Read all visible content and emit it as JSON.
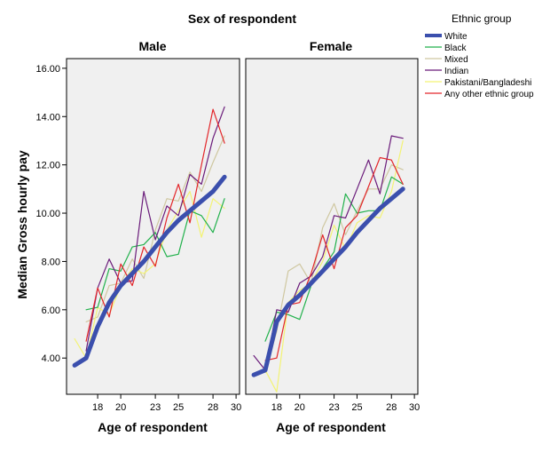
{
  "chart_data": {
    "type": "line",
    "title": "Sex of respondent",
    "xlabel": "Age of respondent",
    "ylabel": "Median Gross hourly pay",
    "x_ticks": [
      18,
      20,
      23,
      25,
      28,
      30
    ],
    "y_ticks": [
      "4.00",
      "6.00",
      "8.00",
      "10.00",
      "12.00",
      "14.00",
      "16.00"
    ],
    "xlim": [
      15.3,
      30.3
    ],
    "ylim": [
      2.5,
      16.4
    ],
    "grid": false,
    "legend_title": "Ethnic group",
    "legend_position": "top-right",
    "series_styles": [
      {
        "name": "White",
        "color": "#3b4fad",
        "width": 5
      },
      {
        "name": "Black",
        "color": "#22b14c",
        "width": 1.2
      },
      {
        "name": "Mixed",
        "color": "#cfc7a0",
        "width": 1.2
      },
      {
        "name": "Indian",
        "color": "#6a1b7a",
        "width": 1.2
      },
      {
        "name": "Pakistani/Bangladeshi",
        "color": "#f3f374",
        "width": 1.2
      },
      {
        "name": "Any other ethnic group",
        "color": "#e3262a",
        "width": 1.2
      }
    ],
    "panels": [
      {
        "title": "Male",
        "series": [
          {
            "name": "White",
            "x": [
              16,
              17,
              18,
              19,
              20,
              21,
              22,
              23,
              24,
              25,
              26,
              27,
              28,
              29
            ],
            "y": [
              3.7,
              4.0,
              5.3,
              6.3,
              7.0,
              7.5,
              8.0,
              8.6,
              9.2,
              9.7,
              10.1,
              10.5,
              10.9,
              11.5
            ]
          },
          {
            "name": "Black",
            "x": [
              17,
              18,
              19,
              20,
              21,
              22,
              23,
              24,
              25,
              26,
              27,
              28,
              29
            ],
            "y": [
              6.0,
              6.1,
              7.7,
              7.6,
              8.6,
              8.7,
              9.2,
              8.2,
              8.3,
              10.1,
              9.9,
              9.2,
              10.6
            ]
          },
          {
            "name": "Mixed",
            "x": [
              17,
              18,
              19,
              20,
              21,
              22,
              23,
              24,
              25,
              26,
              27,
              28,
              29
            ],
            "y": [
              5.5,
              5.7,
              7.0,
              7.1,
              8.1,
              7.3,
              9.3,
              10.6,
              10.5,
              11.7,
              10.9,
              12.1,
              13.2
            ]
          },
          {
            "name": "Indian",
            "x": [
              17,
              18,
              19,
              20,
              21,
              22,
              23,
              24,
              25,
              26,
              27,
              28,
              29
            ],
            "y": [
              4.3,
              6.9,
              8.1,
              7.1,
              7.2,
              10.9,
              8.9,
              10.3,
              9.9,
              11.6,
              11.2,
              13.1,
              14.4
            ]
          },
          {
            "name": "Pakistani/Bangladeshi",
            "x": [
              16,
              17,
              18,
              19,
              20,
              21,
              22,
              23,
              24,
              25,
              26,
              27,
              28,
              29
            ],
            "y": [
              4.8,
              4.0,
              6.1,
              5.8,
              7.0,
              7.7,
              7.5,
              7.9,
              9.3,
              10.1,
              10.9,
              9.0,
              10.6,
              10.2
            ]
          },
          {
            "name": "Any other ethnic group",
            "x": [
              17,
              18,
              19,
              20,
              21,
              22,
              23,
              24,
              25,
              26,
              27,
              28,
              29
            ],
            "y": [
              4.7,
              6.9,
              5.7,
              7.9,
              7.0,
              8.6,
              7.8,
              9.8,
              11.2,
              9.6,
              12.0,
              14.3,
              12.9
            ]
          }
        ]
      },
      {
        "title": "Female",
        "series": [
          {
            "name": "White",
            "x": [
              16,
              17,
              18,
              19,
              20,
              21,
              22,
              23,
              24,
              25,
              26,
              27,
              28,
              29
            ],
            "y": [
              3.3,
              3.5,
              5.5,
              6.2,
              6.6,
              7.1,
              7.6,
              8.1,
              8.6,
              9.2,
              9.7,
              10.2,
              10.6,
              11.0
            ]
          },
          {
            "name": "Black",
            "x": [
              17,
              18,
              19,
              20,
              21,
              22,
              23,
              24,
              25,
              26,
              27,
              28,
              29
            ],
            "y": [
              4.7,
              5.9,
              5.8,
              5.6,
              7.0,
              7.7,
              8.4,
              10.8,
              10.0,
              10.1,
              10.1,
              11.5,
              11.2
            ]
          },
          {
            "name": "Mixed",
            "x": [
              17,
              18,
              19,
              20,
              21,
              22,
              23,
              24,
              25,
              26,
              27,
              28,
              29
            ],
            "y": [
              3.4,
              5.1,
              7.6,
              7.9,
              7.1,
              9.4,
              10.4,
              9.1,
              10.1,
              11.0,
              11.0,
              12.0,
              11.8
            ]
          },
          {
            "name": "Indian",
            "x": [
              16,
              17,
              18,
              19,
              20,
              21,
              22,
              23,
              24,
              25,
              26,
              27,
              28,
              29
            ],
            "y": [
              4.1,
              3.5,
              6.0,
              5.9,
              7.1,
              7.4,
              8.2,
              9.9,
              9.8,
              11.0,
              12.2,
              10.8,
              13.2,
              13.1
            ]
          },
          {
            "name": "Pakistani/Bangladeshi",
            "x": [
              17,
              18,
              19,
              20,
              21,
              22,
              23,
              24,
              25,
              26,
              27,
              28,
              29
            ],
            "y": [
              3.5,
              2.6,
              6.3,
              6.8,
              7.1,
              8.0,
              9.5,
              8.5,
              9.6,
              9.9,
              9.8,
              10.9,
              13.0
            ]
          },
          {
            "name": "Any other ethnic group",
            "x": [
              17,
              18,
              19,
              20,
              21,
              22,
              23,
              24,
              25,
              26,
              27,
              28,
              29
            ],
            "y": [
              3.9,
              4.0,
              6.2,
              6.3,
              7.5,
              9.1,
              7.7,
              9.4,
              9.9,
              11.1,
              12.3,
              12.2,
              11.2
            ]
          }
        ]
      }
    ]
  }
}
